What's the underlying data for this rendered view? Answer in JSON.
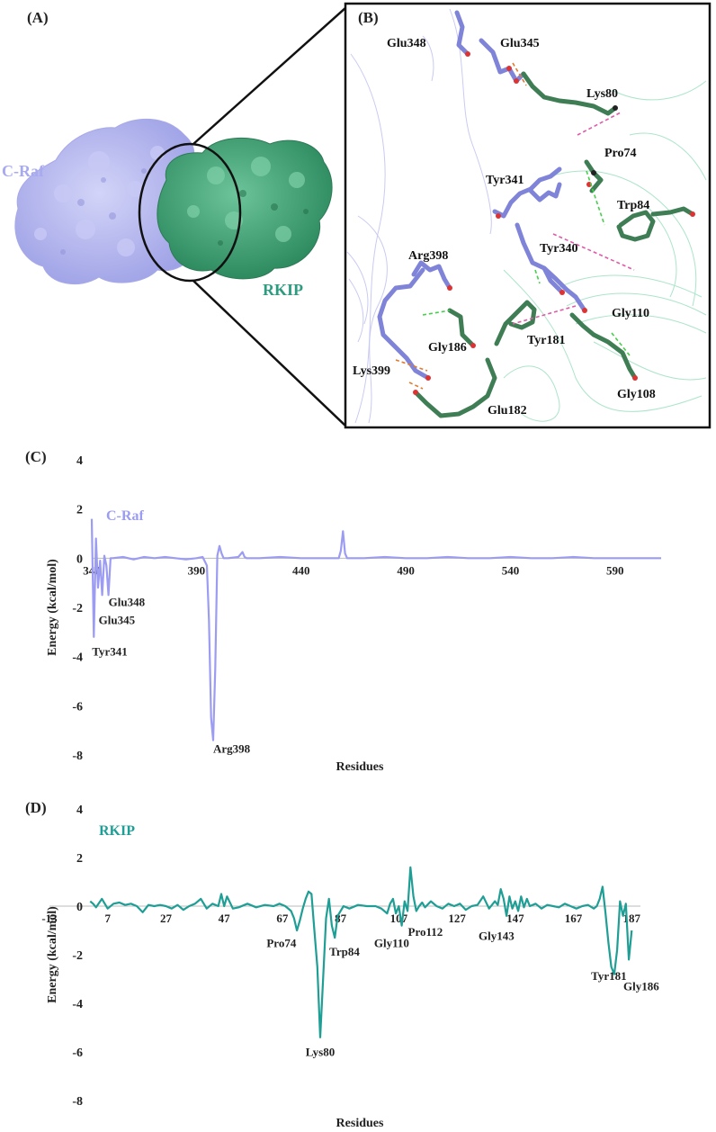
{
  "panel_a": {
    "label": "(A)",
    "c_raf_label": "C-Raf",
    "rkip_label": "RKIP",
    "colors": {
      "craf": "#b3b5ee",
      "rkip": "#3f9e73",
      "rkip_text": "#2e9b80",
      "craf_text": "#a8aaf0"
    }
  },
  "panel_b": {
    "label": "(B)",
    "residue_labels": [
      "Glu348",
      "Glu345",
      "Lys80",
      "Pro74",
      "Tyr341",
      "Trp84",
      "Arg398",
      "Tyr340",
      "Gly110",
      "Gly186",
      "Tyr181",
      "Lys399",
      "Gly108",
      "Glu182"
    ],
    "colors": {
      "craf_stick": "#7f84d9",
      "rkip_stick": "#3f7d55"
    }
  },
  "panel_c": {
    "label": "(C)",
    "chart_data": {
      "type": "line",
      "title": "C-Raf",
      "xlabel": "Residues",
      "ylabel": "Energy (kcal/mol)",
      "ylim": [
        -8,
        4
      ],
      "yticks": [
        4,
        2,
        0,
        -2,
        -4,
        -6,
        -8
      ],
      "xlim": [
        340,
        612
      ],
      "xticks": [
        340,
        390,
        440,
        490,
        540,
        590
      ],
      "color": "#9b9cf2",
      "series": [
        {
          "x": [
            340,
            341,
            342,
            343,
            344,
            345,
            346,
            347,
            348,
            349,
            350,
            355,
            360,
            365,
            370,
            375,
            380,
            385,
            390,
            393,
            395,
            396,
            397,
            398,
            399,
            400,
            401,
            402,
            403,
            405,
            410,
            412,
            413,
            414,
            420,
            430,
            440,
            450,
            458,
            459,
            460,
            461,
            462,
            470,
            480,
            490,
            500,
            510,
            520,
            530,
            540,
            550,
            560,
            570,
            580,
            590,
            600,
            612
          ],
          "y": [
            1.6,
            -3.2,
            0.8,
            -1.2,
            -0.1,
            -1.5,
            0.1,
            -0.3,
            -1.5,
            0.0,
            0.0,
            0.05,
            -0.05,
            0.05,
            0.0,
            0.05,
            0.0,
            -0.05,
            0.0,
            0.05,
            -0.3,
            -2.5,
            -6.5,
            -7.4,
            -4.5,
            0.1,
            0.5,
            0.2,
            0.0,
            0.0,
            0.05,
            0.25,
            0.05,
            0.0,
            0.0,
            0.05,
            0.0,
            0.0,
            0.0,
            0.3,
            1.1,
            0.2,
            0.0,
            0.0,
            0.05,
            0.0,
            0.0,
            0.05,
            0.0,
            0.0,
            0.05,
            0.0,
            0.0,
            0.05,
            0.0,
            0.0,
            0.0,
            0.0
          ]
        }
      ],
      "annotations": [
        {
          "text": "Glu348",
          "x": 348,
          "y": -1.5
        },
        {
          "text": "Glu345",
          "x": 345,
          "y": -2.1
        },
        {
          "text": "Tyr341",
          "x": 341,
          "y": -3.3
        },
        {
          "text": "Arg398",
          "x": 398,
          "y": -7.4
        }
      ]
    }
  },
  "panel_d": {
    "label": "(D)",
    "chart_data": {
      "type": "line",
      "title": "RKIP",
      "xlabel": "Residues",
      "ylabel": "Energy (kcal/mol)",
      "ylim": [
        -8,
        4
      ],
      "yticks": [
        4,
        2,
        0,
        -2,
        -4,
        -6,
        -8
      ],
      "xlim": [
        -13,
        190
      ],
      "xticks": [
        -13,
        7,
        27,
        47,
        67,
        87,
        107,
        127,
        147,
        167,
        187
      ],
      "color": "#1f9e95",
      "series": [
        {
          "x": [
            1,
            2,
            3,
            5,
            7,
            9,
            11,
            13,
            15,
            17,
            19,
            21,
            23,
            25,
            27,
            29,
            31,
            33,
            35,
            37,
            39,
            41,
            43,
            45,
            46,
            47,
            48,
            50,
            52,
            55,
            58,
            61,
            64,
            66,
            68,
            70,
            71,
            72,
            73,
            74,
            75,
            76,
            77,
            78,
            79,
            80,
            81,
            82,
            83,
            84,
            85,
            86,
            88,
            90,
            93,
            96,
            99,
            101,
            103,
            104,
            105,
            106,
            107,
            108,
            109,
            110,
            111,
            112,
            113,
            114,
            115,
            116,
            118,
            120,
            122,
            124,
            126,
            128,
            130,
            132,
            134,
            136,
            138,
            140,
            141,
            142,
            143,
            144,
            145,
            146,
            147,
            148,
            149,
            150,
            151,
            152,
            154,
            156,
            158,
            160,
            162,
            164,
            166,
            168,
            170,
            172,
            174,
            175,
            176,
            177,
            178,
            179,
            180,
            181,
            182,
            183,
            184,
            185,
            186,
            187
          ],
          "y": [
            0.2,
            0.1,
            -0.05,
            0.3,
            -0.1,
            0.1,
            0.15,
            0.05,
            0.1,
            0.0,
            -0.25,
            0.05,
            0.0,
            0.05,
            0.0,
            -0.1,
            0.05,
            -0.15,
            0.0,
            0.1,
            0.3,
            -0.1,
            0.1,
            0.0,
            0.5,
            0.0,
            0.4,
            -0.1,
            -0.05,
            0.1,
            -0.05,
            0.05,
            0.0,
            0.1,
            0.0,
            -0.2,
            -0.5,
            -1.0,
            -0.6,
            -0.1,
            0.3,
            0.6,
            0.5,
            -1.0,
            -2.5,
            -5.4,
            -3.0,
            -0.5,
            0.3,
            -0.8,
            -1.3,
            -0.4,
            0.0,
            -0.1,
            0.05,
            0.0,
            0.0,
            -0.1,
            -0.3,
            0.1,
            0.3,
            -0.3,
            0.0,
            -0.8,
            0.2,
            -0.2,
            1.6,
            0.4,
            -0.2,
            0.0,
            0.15,
            -0.05,
            0.2,
            0.0,
            -0.1,
            0.1,
            0.0,
            0.1,
            -0.15,
            0.0,
            0.05,
            0.4,
            -0.1,
            0.2,
            0.05,
            0.7,
            0.3,
            -0.4,
            0.4,
            -0.1,
            0.2,
            -0.2,
            0.4,
            -0.05,
            0.3,
            0.0,
            0.1,
            -0.1,
            0.05,
            0.0,
            -0.05,
            0.1,
            0.0,
            -0.1,
            0.0,
            0.05,
            -0.1,
            0.0,
            0.3,
            0.8,
            -0.3,
            -1.5,
            -2.5,
            -2.8,
            -1.8,
            0.2,
            -0.4,
            0.1,
            -2.2,
            -1.0
          ]
        }
      ],
      "annotations": [
        {
          "text": "Pro74",
          "x": 73,
          "y": -1.1
        },
        {
          "text": "Lys80",
          "x": 80,
          "y": -5.5
        },
        {
          "text": "Trp84",
          "x": 85,
          "y": -1.3
        },
        {
          "text": "Gly110",
          "x": 107,
          "y": -1.1
        },
        {
          "text": "Pro112",
          "x": 112,
          "y": -0.7
        },
        {
          "text": "Gly143",
          "x": 143,
          "y": -0.8
        },
        {
          "text": "Tyr181",
          "x": 181,
          "y": -2.3
        },
        {
          "text": "Gly186",
          "x": 186,
          "y": -2.8
        }
      ]
    }
  }
}
